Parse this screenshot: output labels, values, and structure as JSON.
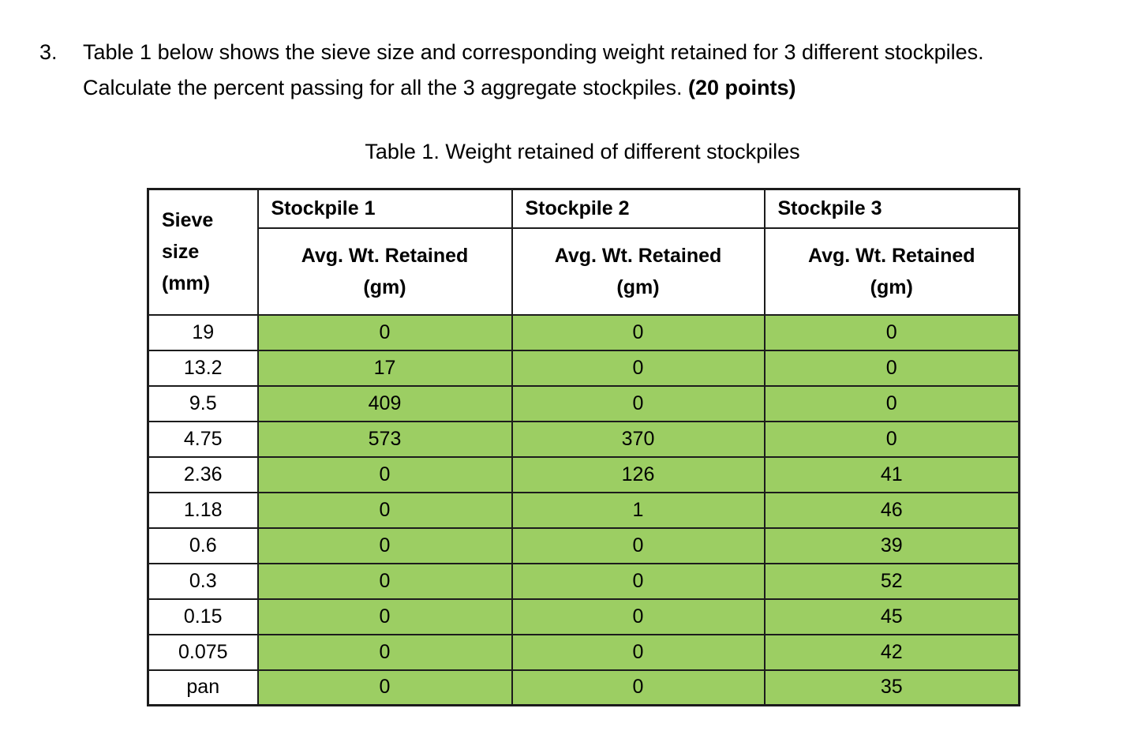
{
  "question": {
    "number": "3.",
    "line1": "Table 1 below shows the sieve size and corresponding weight retained for 3 different stockpiles.",
    "line2": "Calculate the percent passing for all the 3 aggregate stockpiles.",
    "points": "(20 points)"
  },
  "table": {
    "title": "Table 1. Weight retained of different stockpiles",
    "corner_lines": [
      "Sieve",
      "size",
      "(mm)"
    ],
    "group_headers": [
      "Stockpile 1",
      "Stockpile 2",
      "Stockpile 3"
    ],
    "sub_header_lines": [
      "Avg. Wt. Retained",
      "(gm)"
    ],
    "rows": [
      {
        "sieve": "19",
        "values": [
          "0",
          "0",
          "0"
        ]
      },
      {
        "sieve": "13.2",
        "values": [
          "17",
          "0",
          "0"
        ]
      },
      {
        "sieve": "9.5",
        "values": [
          "409",
          "0",
          "0"
        ]
      },
      {
        "sieve": "4.75",
        "values": [
          "573",
          "370",
          "0"
        ]
      },
      {
        "sieve": "2.36",
        "values": [
          "0",
          "126",
          "41"
        ]
      },
      {
        "sieve": "1.18",
        "values": [
          "0",
          "1",
          "46"
        ]
      },
      {
        "sieve": "0.6",
        "values": [
          "0",
          "0",
          "39"
        ]
      },
      {
        "sieve": "0.3",
        "values": [
          "0",
          "0",
          "52"
        ]
      },
      {
        "sieve": "0.15",
        "values": [
          "0",
          "0",
          "45"
        ]
      },
      {
        "sieve": "0.075",
        "values": [
          "0",
          "0",
          "42"
        ]
      },
      {
        "sieve": "pan",
        "values": [
          "0",
          "0",
          "35"
        ]
      }
    ],
    "colors": {
      "highlight_green": "#9CCE63",
      "border": "#1c1c1c",
      "text": "#000000"
    }
  }
}
